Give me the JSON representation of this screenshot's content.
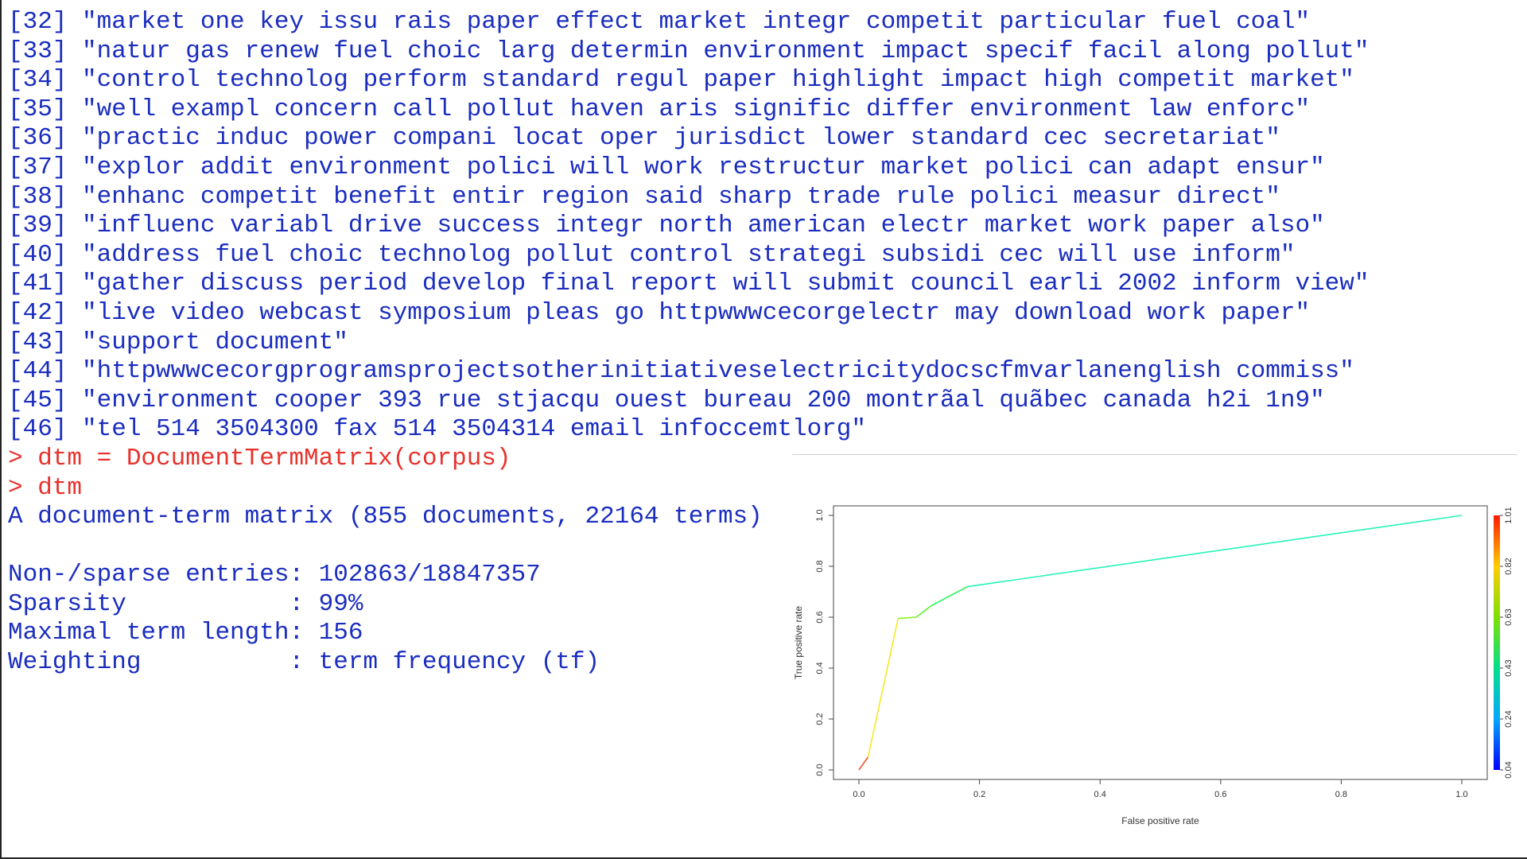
{
  "console": {
    "lines": [
      {
        "idx": "[32]",
        "text": "\"market one key issu rais paper effect market integr competit particular fuel coal\""
      },
      {
        "idx": "[33]",
        "text": "\"natur gas renew fuel choic larg determin environment impact specif facil along pollut\""
      },
      {
        "idx": "[34]",
        "text": "\"control technolog perform standard regul paper highlight impact high competit market\""
      },
      {
        "idx": "[35]",
        "text": "\"well exampl concern call pollut haven aris signific differ environment law enforc\""
      },
      {
        "idx": "[36]",
        "text": "\"practic induc power compani locat oper jurisdict lower standard cec secretariat\""
      },
      {
        "idx": "[37]",
        "text": "\"explor addit environment polici will work restructur market polici can adapt ensur\""
      },
      {
        "idx": "[38]",
        "text": "\"enhanc competit benefit entir region said sharp trade rule polici measur direct\""
      },
      {
        "idx": "[39]",
        "text": "\"influenc variabl drive success integr north american electr market work paper also\""
      },
      {
        "idx": "[40]",
        "text": "\"address fuel choic technolog pollut control strategi subsidi cec will use inform\""
      },
      {
        "idx": "[41]",
        "text": "\"gather discuss period develop final report will submit council earli 2002 inform view\""
      },
      {
        "idx": "[42]",
        "text": "\"live video webcast symposium pleas go httpwwwcecorgelectr may download work paper\""
      },
      {
        "idx": "[43]",
        "text": "\"support document\""
      },
      {
        "idx": "[44]",
        "text": "\"httpwwwcecorgprogramsprojectsotherinitiativeselectricitydocscfmvarlanenglish commiss\""
      },
      {
        "idx": "[45]",
        "text": "\"environment cooper 393 rue stjacqu ouest bureau 200 montrãal quãbec canada h2i 1n9\""
      },
      {
        "idx": "[46]",
        "text": "\"tel 514 3504300 fax 514 3504314 email infoccemtlorg\""
      }
    ],
    "cmd1": "> dtm = DocumentTermMatrix(corpus)",
    "cmd2": "> dtm",
    "out1": "A document-term matrix (855 documents, 22164 terms)",
    "out2": "Non-/sparse entries: 102863/18847357",
    "out3": "Sparsity           : 99%",
    "out4": "Maximal term length: 156",
    "out5": "Weighting          : term frequency (tf)"
  },
  "chart_data": {
    "type": "line",
    "xlabel": "False positive rate",
    "ylabel": "True positive rate",
    "xlim": [
      0,
      1
    ],
    "ylim": [
      0,
      1
    ],
    "x_ticks": [
      "0.0",
      "0.2",
      "0.4",
      "0.6",
      "0.8",
      "1.0"
    ],
    "y_ticks": [
      "0.0",
      "0.2",
      "0.4",
      "0.6",
      "0.8",
      "1.0"
    ],
    "points": [
      {
        "x": 0.0,
        "y": 0.0,
        "t": 1.01
      },
      {
        "x": 0.015,
        "y": 0.05,
        "t": 0.9
      },
      {
        "x": 0.065,
        "y": 0.595,
        "t": 0.66
      },
      {
        "x": 0.095,
        "y": 0.6,
        "t": 0.62
      },
      {
        "x": 0.12,
        "y": 0.645,
        "t": 0.55
      },
      {
        "x": 0.18,
        "y": 0.72,
        "t": 0.38
      },
      {
        "x": 1.0,
        "y": 1.0,
        "t": 0.32
      }
    ],
    "colorbar": {
      "labels": [
        "1.01",
        "0.82",
        "0.63",
        "0.43",
        "0.24",
        "0.04"
      ],
      "min": 0.04,
      "max": 1.01
    },
    "grid": false
  }
}
